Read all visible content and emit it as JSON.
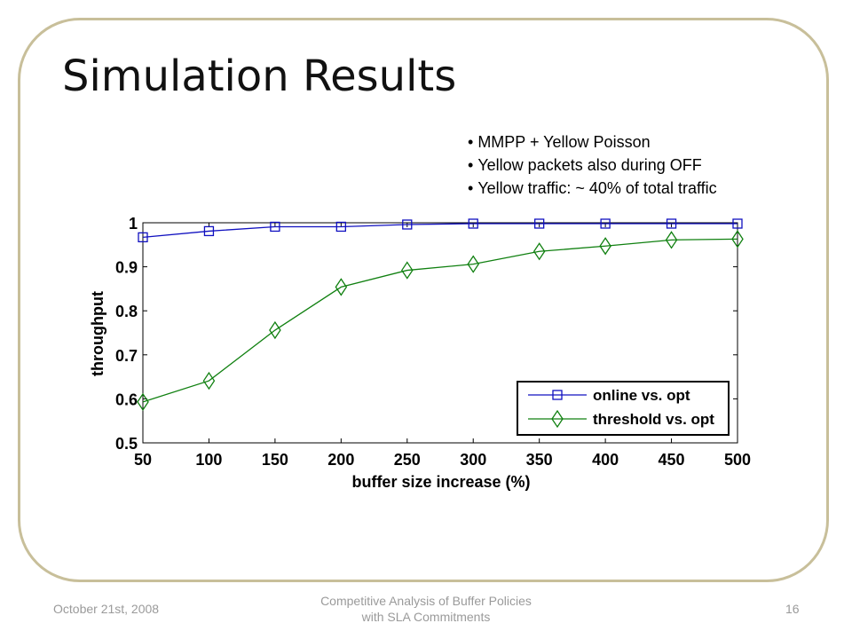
{
  "slide": {
    "title": "Simulation Results",
    "bullets": [
      "MMPP + Yellow Poisson",
      "Yellow packets also during OFF",
      "Yellow traffic: ~ 40% of total traffic"
    ],
    "footer_date": "October 21st, 2008",
    "footer_title_line1": "Competitive Analysis of Buffer Policies",
    "footer_title_line2": "with SLA Commitments",
    "page_number": "16",
    "frame_color": "#c8bf9a"
  },
  "chart_data": {
    "type": "line",
    "xlabel": "buffer size increase (%)",
    "ylabel": "throughput",
    "xlim": [
      50,
      500
    ],
    "ylim": [
      0.5,
      1
    ],
    "xticks": [
      "50",
      "100",
      "150",
      "200",
      "250",
      "300",
      "350",
      "400",
      "450",
      "500"
    ],
    "yticks": [
      "0.5",
      "0.6",
      "0.7",
      "0.8",
      "0.9",
      "1"
    ],
    "grid": false,
    "legend_position": "bottom-right",
    "x": [
      50,
      100,
      150,
      200,
      250,
      300,
      350,
      400,
      450,
      500
    ],
    "series": [
      {
        "name": "online vs. opt",
        "marker": "square",
        "color": "#1010c0",
        "values": [
          0.967,
          0.981,
          0.991,
          0.991,
          0.996,
          0.998,
          0.998,
          0.998,
          0.998,
          0.998
        ]
      },
      {
        "name": "threshold vs. opt",
        "marker": "diamond",
        "color": "#108010",
        "values": [
          0.593,
          0.641,
          0.756,
          0.854,
          0.892,
          0.906,
          0.935,
          0.947,
          0.961,
          0.963
        ]
      }
    ]
  }
}
